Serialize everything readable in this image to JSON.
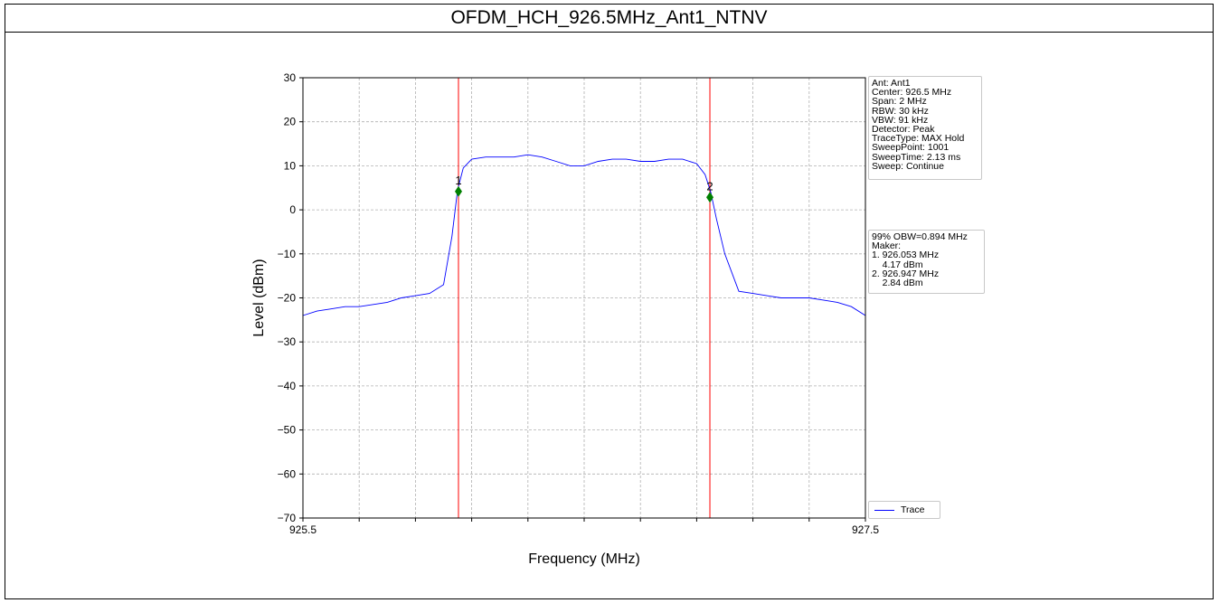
{
  "page_title": "OFDM_HCH_926.5MHz_Ant1_NTNV",
  "chart_data": {
    "type": "line",
    "title": "OFDM_HCH_926.5MHz_Ant1_NTNV",
    "xlabel": "Frequency (MHz)",
    "ylabel": "Level (dBm)",
    "xlim": [
      925.5,
      927.5
    ],
    "ylim": [
      -70,
      30
    ],
    "x_tick_labels": [
      "925.5",
      "927.5"
    ],
    "y_ticks": [
      30,
      20,
      10,
      0,
      -10,
      -20,
      -30,
      -40,
      -50,
      -60,
      -70
    ],
    "y_tick_labels": [
      "30",
      "20",
      "10",
      "0",
      "−10",
      "−20",
      "−30",
      "−40",
      "−50",
      "−60",
      "−70"
    ],
    "grid": true,
    "series": [
      {
        "name": "Trace",
        "color": "#0000ff",
        "x": [
          925.5,
          925.55,
          925.6,
          925.65,
          925.7,
          925.75,
          925.8,
          925.85,
          925.9,
          925.95,
          926.0,
          926.03,
          926.05,
          926.07,
          926.1,
          926.15,
          926.2,
          926.25,
          926.3,
          926.35,
          926.4,
          926.45,
          926.5,
          926.55,
          926.6,
          926.65,
          926.7,
          926.75,
          926.8,
          926.85,
          926.9,
          926.93,
          926.95,
          926.97,
          927.0,
          927.05,
          927.1,
          927.15,
          927.2,
          927.25,
          927.3,
          927.35,
          927.4,
          927.45,
          927.5
        ],
        "y": [
          -24,
          -23,
          -22.5,
          -22,
          -22,
          -21.5,
          -21,
          -20,
          -19.5,
          -19,
          -17,
          -6,
          4.5,
          9.5,
          11.5,
          12,
          12,
          12,
          12.5,
          12,
          11,
          10,
          10,
          11,
          11.5,
          11.5,
          11,
          11,
          11.5,
          11.5,
          10.5,
          8,
          4,
          -2,
          -10,
          -18.5,
          -19,
          -19.5,
          -20,
          -20,
          -20,
          -20.5,
          -21,
          -22,
          -24
        ]
      }
    ],
    "markers": [
      {
        "label": "1",
        "x": 926.053,
        "y": 4.17,
        "color": "#008000"
      },
      {
        "label": "2",
        "x": 926.947,
        "y": 2.84,
        "color": "#008000"
      }
    ],
    "vertical_lines": [
      {
        "x": 926.053,
        "color": "#ff0000"
      },
      {
        "x": 926.947,
        "color": "#ff0000"
      }
    ],
    "legend": {
      "placement": "lower-right-outside",
      "entries": [
        "Trace"
      ]
    },
    "annotations": {
      "settings_lines": [
        "Ant: Ant1",
        "Center: 926.5 MHz",
        "Span: 2 MHz",
        "RBW: 30 kHz",
        "VBW: 91 kHz",
        "Detector: Peak",
        "TraceType: MAX Hold",
        "SweepPoint: 1001",
        "SweepTime: 2.13 ms",
        "Sweep: Continue"
      ],
      "result_lines": [
        "99% OBW=0.894 MHz",
        "Maker:",
        "1. 926.053 MHz",
        "    4.17 dBm",
        "2. 926.947 MHz",
        "    2.84 dBm"
      ]
    }
  }
}
